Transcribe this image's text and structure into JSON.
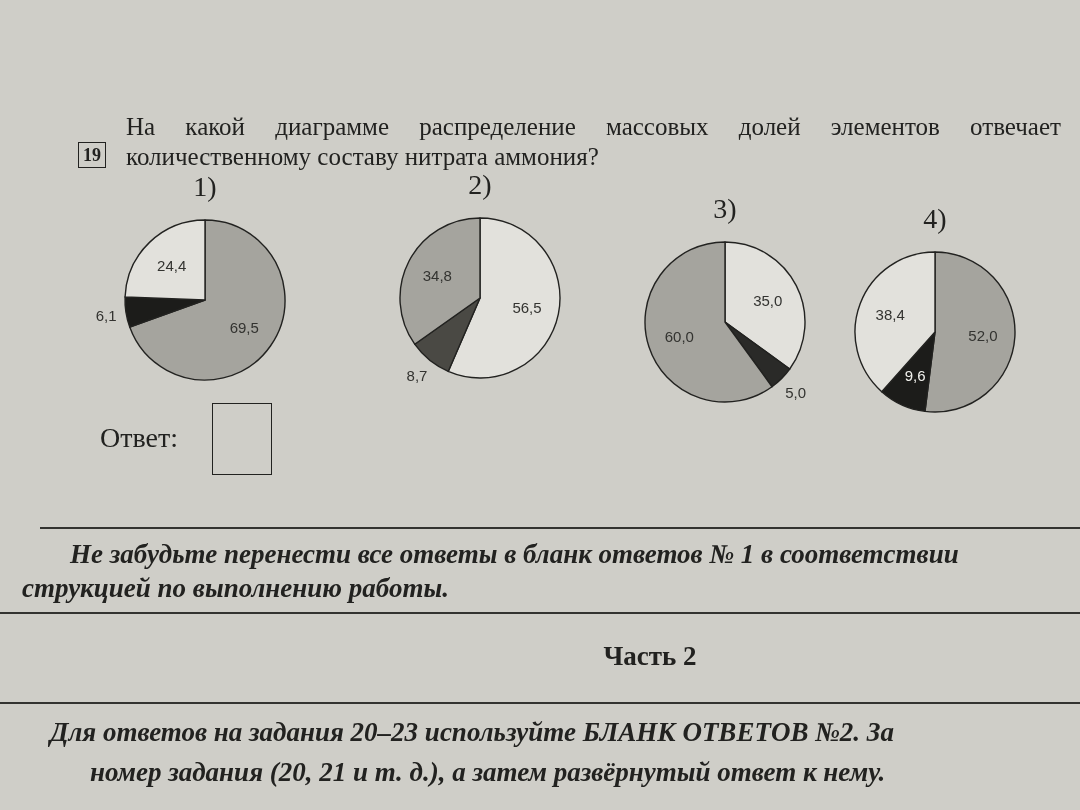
{
  "chart_data": [
    {
      "type": "other",
      "title": "На какой диаграмме распределение массовых долей элементов отвечает количественному составу нитрата аммония?",
      "annotations": [
        "19"
      ]
    },
    {
      "type": "pie",
      "title": "1)",
      "categories": [
        null,
        null,
        null
      ],
      "values": [
        69.5,
        6.1,
        24.4
      ],
      "colors": [
        "#a5a49e",
        "#1c1c1a",
        "#e2e1dc"
      ],
      "value_labels": [
        "69,5",
        "6,1",
        "24,4"
      ]
    },
    {
      "type": "pie",
      "title": "2)",
      "categories": [
        null,
        null,
        null
      ],
      "values": [
        56.5,
        8.7,
        34.8
      ],
      "colors": [
        "#e2e1dc",
        "#4a4944",
        "#a5a49e"
      ],
      "value_labels": [
        "56,5",
        "8,7",
        "34,8"
      ]
    },
    {
      "type": "pie",
      "title": "3)",
      "categories": [
        null,
        null,
        null
      ],
      "values": [
        35.0,
        5.0,
        60.0
      ],
      "colors": [
        "#e2e1dc",
        "#2a2a28",
        "#a5a49e"
      ],
      "value_labels": [
        "35,0",
        "5,0",
        "60,0"
      ]
    },
    {
      "type": "pie",
      "title": "4)",
      "categories": [
        null,
        null,
        null
      ],
      "values": [
        52.0,
        9.6,
        38.4
      ],
      "colors": [
        "#a5a49e",
        "#1c1c1a",
        "#e2e1dc"
      ],
      "value_labels": [
        "52,0",
        "9,6",
        "38,4"
      ]
    },
    {
      "type": "other",
      "annotations": [
        "Ответ:",
        "Не забудьте перенести все ответы в бланк ответов № 1 в соответствии",
        "струкцией по выполнению работы.",
        "Часть 2",
        "Для ответов на задания 20–23 используйте БЛАНК ОТВЕТОВ №2. За",
        "номер задания (20, 21 и т. д.), а затем развёрнутый ответ к нему."
      ]
    }
  ]
}
